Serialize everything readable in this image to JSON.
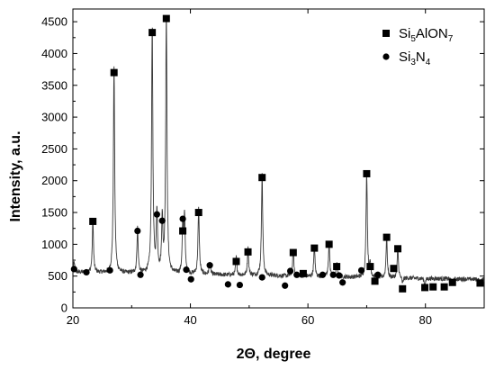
{
  "chart_data": {
    "type": "line",
    "title": "",
    "xlabel": "2Θ, degree",
    "ylabel": "Intensity, a.u.",
    "xlim": [
      20,
      90
    ],
    "ylim": [
      0,
      4700
    ],
    "x_ticks": [
      20,
      40,
      60,
      80
    ],
    "y_ticks": [
      0,
      500,
      1000,
      1500,
      2000,
      2500,
      3000,
      3500,
      4000,
      4500
    ],
    "grid": false,
    "legend_position": "top-right",
    "legend": [
      {
        "marker": "square",
        "base": "Si",
        "sub1": "5",
        "mid": "AlON",
        "sub2": "7"
      },
      {
        "marker": "circle",
        "base": "Si",
        "sub1": "3",
        "mid": "N",
        "sub2": "4"
      }
    ],
    "series": [
      {
        "type": "line",
        "color": "#3a3a3a",
        "baseline": 440,
        "peaks": [
          {
            "x": 20.2,
            "h": 600,
            "w": 0.12
          },
          {
            "x": 23.4,
            "h": 1280,
            "w": 0.12
          },
          {
            "x": 27.0,
            "h": 3650,
            "w": 0.13
          },
          {
            "x": 31.0,
            "h": 1150,
            "w": 0.12
          },
          {
            "x": 33.5,
            "h": 4320,
            "w": 0.13
          },
          {
            "x": 34.3,
            "h": 1400,
            "w": 0.12
          },
          {
            "x": 35.2,
            "h": 1300,
            "w": 0.12
          },
          {
            "x": 35.9,
            "h": 4540,
            "w": 0.13
          },
          {
            "x": 38.7,
            "h": 1200,
            "w": 0.12
          },
          {
            "x": 39.0,
            "h": 1350,
            "w": 0.12
          },
          {
            "x": 41.4,
            "h": 1470,
            "w": 0.13
          },
          {
            "x": 43.3,
            "h": 650,
            "w": 0.12
          },
          {
            "x": 47.8,
            "h": 720,
            "w": 0.12
          },
          {
            "x": 49.8,
            "h": 860,
            "w": 0.12
          },
          {
            "x": 52.2,
            "h": 2020,
            "w": 0.13
          },
          {
            "x": 57.5,
            "h": 850,
            "w": 0.12
          },
          {
            "x": 61.1,
            "h": 920,
            "w": 0.12
          },
          {
            "x": 63.6,
            "h": 980,
            "w": 0.12
          },
          {
            "x": 64.9,
            "h": 640,
            "w": 0.12
          },
          {
            "x": 70.0,
            "h": 2080,
            "w": 0.13
          },
          {
            "x": 70.6,
            "h": 640,
            "w": 0.12
          },
          {
            "x": 73.4,
            "h": 1090,
            "w": 0.12
          },
          {
            "x": 75.3,
            "h": 910,
            "w": 0.12
          },
          {
            "x": 76.1,
            "h": 340,
            "w": 0.12
          },
          {
            "x": 79.9,
            "h": 330,
            "w": 0.12
          },
          {
            "x": 84.6,
            "h": 380,
            "w": 0.12
          },
          {
            "x": 89.3,
            "h": 380,
            "w": 0.12
          }
        ]
      }
    ],
    "markers": [
      {
        "phase": "Si5AlON7",
        "shape": "square",
        "points": [
          [
            23.4,
            1360
          ],
          [
            27.0,
            3700
          ],
          [
            33.5,
            4330
          ],
          [
            35.9,
            4550
          ],
          [
            38.7,
            1210
          ],
          [
            41.4,
            1500
          ],
          [
            47.8,
            730
          ],
          [
            49.8,
            880
          ],
          [
            52.2,
            2050
          ],
          [
            57.5,
            870
          ],
          [
            59.2,
            540
          ],
          [
            61.1,
            940
          ],
          [
            63.6,
            1000
          ],
          [
            64.9,
            650
          ],
          [
            70.0,
            2110
          ],
          [
            70.6,
            650
          ],
          [
            71.4,
            420
          ],
          [
            73.4,
            1110
          ],
          [
            74.6,
            620
          ],
          [
            75.3,
            930
          ],
          [
            76.1,
            300
          ],
          [
            79.9,
            320
          ],
          [
            81.3,
            330
          ],
          [
            83.2,
            330
          ],
          [
            84.6,
            400
          ],
          [
            89.3,
            390
          ]
        ]
      },
      {
        "phase": "Si3N4",
        "shape": "circle",
        "points": [
          [
            20.2,
            610
          ],
          [
            22.3,
            560
          ],
          [
            26.3,
            590
          ],
          [
            31.0,
            1210
          ],
          [
            31.5,
            520
          ],
          [
            34.3,
            1470
          ],
          [
            35.2,
            1370
          ],
          [
            38.7,
            1400
          ],
          [
            39.3,
            600
          ],
          [
            40.1,
            450
          ],
          [
            43.3,
            670
          ],
          [
            46.4,
            370
          ],
          [
            48.4,
            360
          ],
          [
            52.2,
            480
          ],
          [
            56.1,
            350
          ],
          [
            57.0,
            580
          ],
          [
            58.1,
            520
          ],
          [
            62.5,
            520
          ],
          [
            64.3,
            520
          ],
          [
            65.3,
            510
          ],
          [
            65.9,
            400
          ],
          [
            69.1,
            590
          ],
          [
            71.9,
            520
          ]
        ]
      }
    ]
  }
}
